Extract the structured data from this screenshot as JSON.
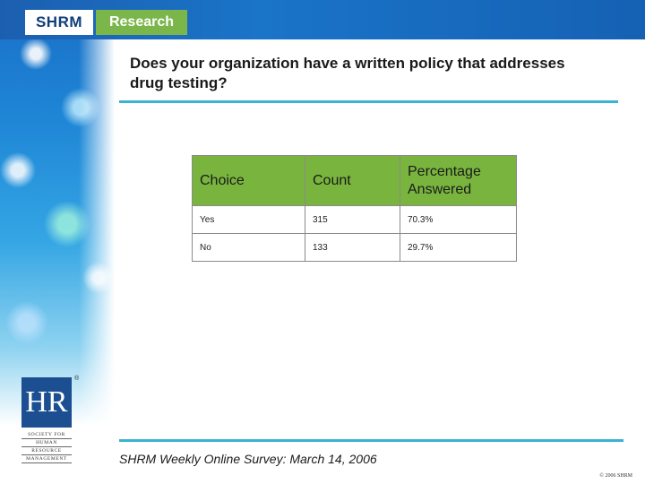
{
  "header": {
    "logo_primary": "SHRM",
    "logo_secondary": "Research"
  },
  "title": "Does your organization have a written policy that addresses drug testing?",
  "table": {
    "columns": [
      "Choice",
      "Count",
      "Percentage Answered"
    ],
    "rows": [
      {
        "choice": "Yes",
        "count": "315",
        "percentage": "70.3%"
      },
      {
        "choice": "No",
        "count": "133",
        "percentage": "29.7%"
      }
    ]
  },
  "hr_logo": {
    "letters": "HR",
    "registered": "®",
    "lines": [
      "SOCIETY FOR",
      "HUMAN",
      "RESOURCE",
      "MANAGEMENT"
    ]
  },
  "footer": {
    "source": "SHRM Weekly Online Survey: March 14, 2006",
    "copyright": "© 2006 SHRM"
  },
  "colors": {
    "header_green": "#79b53e",
    "rule_teal": "#39b3cf",
    "brand_blue": "#1b4f92"
  }
}
